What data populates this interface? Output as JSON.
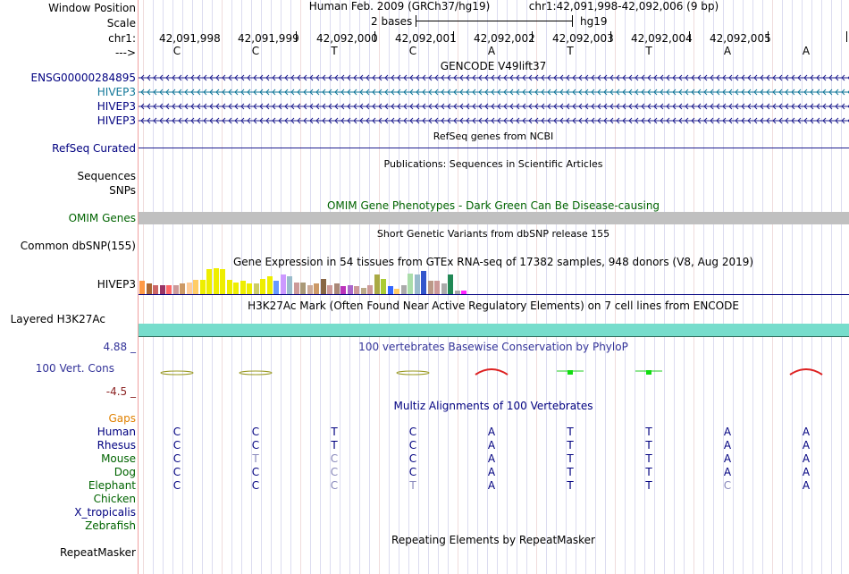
{
  "labels": {
    "window_position": "Window Position",
    "scale": "Scale",
    "chrom": "chr1:",
    "strand": "--->",
    "ensg": "ENSG00000284895",
    "hivep3_1": "HIVEP3",
    "hivep3_2": "HIVEP3",
    "hivep3_3": "HIVEP3",
    "refseq": "RefSeq Curated",
    "sequences": "Sequences",
    "snps": "SNPs",
    "omim": "OMIM Genes",
    "dbsnp": "Common dbSNP(155)",
    "gtex_gene": "HIVEP3",
    "h3k27": "Layered H3K27Ac",
    "phylop_max": "4.88 _",
    "vert_cons": "100 Vert. Cons",
    "phylop_min": "-4.5 _",
    "gaps": "Gaps",
    "species": [
      {
        "name": "Human",
        "color": "#000080"
      },
      {
        "name": "Rhesus",
        "color": "#000080"
      },
      {
        "name": "Mouse",
        "color": "#006400"
      },
      {
        "name": "Dog",
        "color": "#006400"
      },
      {
        "name": "Elephant",
        "color": "#006400"
      },
      {
        "name": "Chicken",
        "color": "#006400"
      },
      {
        "name": "X_tropicalis",
        "color": "#000080"
      },
      {
        "name": "Zebrafish",
        "color": "#006400"
      }
    ],
    "repeatmasker": "RepeatMasker"
  },
  "header": {
    "assembly": "Human Feb. 2009 (GRCh37/hg19)",
    "position": "chr1:42,091,998-42,092,006 (9 bp)",
    "scale_text": "2 bases",
    "scale_db": "hg19"
  },
  "ruler": [
    "42,091,998",
    "42,091,999",
    "42,092,000",
    "42,092,001",
    "42,092,002",
    "42,092,003",
    "42,092,004",
    "42,092,005"
  ],
  "bases": [
    "C",
    "C",
    "T",
    "C",
    "A",
    "T",
    "T",
    "A",
    "A"
  ],
  "titles": {
    "gencode": "GENCODE V49lift37",
    "refseq": "RefSeq genes from NCBI",
    "publications": "Publications: Sequences in Scientific Articles",
    "omim": "OMIM Gene Phenotypes - Dark Green Can Be Disease-causing",
    "dbsnp": "Short Genetic Variants from dbSNP release 155",
    "gtex": "Gene Expression in 54 tissues from GTEx RNA-seq of 17382 samples, 948 donors (V8, Aug 2019)",
    "h3k27": "H3K27Ac Mark (Often Found Near Active Regulatory Elements) on 7 cell lines from ENCODE",
    "phylop": "100 vertebrates Basewise Conservation by PhyloP",
    "multiz": "Multiz Alignments of 100 Vertebrates",
    "repeat": "Repeating Elements by RepeatMasker"
  },
  "alignment": {
    "Human": [
      "C",
      "C",
      "T",
      "C",
      "A",
      "T",
      "T",
      "A",
      "A"
    ],
    "Rhesus": [
      "C",
      "C",
      "T",
      "C",
      "A",
      "T",
      "T",
      "A",
      "A"
    ],
    "Mouse": [
      "C",
      "T",
      "C",
      "C",
      "A",
      "T",
      "T",
      "A",
      "A"
    ],
    "Dog": [
      "C",
      "C",
      "C",
      "C",
      "A",
      "T",
      "T",
      "A",
      "A"
    ],
    "Elephant": [
      "C",
      "C",
      "C",
      "T",
      "A",
      "T",
      "T",
      "C",
      "A"
    ]
  },
  "alignment_faded": {
    "Mouse": [
      false,
      true,
      true,
      false,
      false,
      false,
      false,
      false,
      false
    ],
    "Dog": [
      false,
      false,
      true,
      false,
      false,
      false,
      false,
      false,
      false
    ],
    "Elephant": [
      false,
      false,
      true,
      true,
      false,
      false,
      false,
      true,
      false
    ]
  },
  "gtex_colors": [
    "#ff9944",
    "#aa6633",
    "#cc6666",
    "#993366",
    "#ff6666",
    "#cc9999",
    "#cc9966",
    "#ffcc99",
    "#ffcc66",
    "#eeee00",
    "#eeee00",
    "#eeee00",
    "#eeee00",
    "#eeee00",
    "#eeee00",
    "#eeee00",
    "#eeee00",
    "#cccc66",
    "#eeee00",
    "#eeee00",
    "#6699ff",
    "#cc99ff",
    "#99bbcc",
    "#cc9999",
    "#aa9977",
    "#ccaa99",
    "#cc9966",
    "#886644",
    "#cc9999",
    "#aa8877",
    "#bb33bb",
    "#aa66cc",
    "#cc9999",
    "#bbaa88",
    "#cc9999",
    "#aaaa44",
    "#aacc33",
    "#3366ff",
    "#ffcc66",
    "#aaaaaa",
    "#aaddaa",
    "#99bbcc",
    "#3355cc",
    "#bb9988",
    "#cc9999",
    "#aaaaaa",
    "#228855",
    "#aaaaaa",
    "#ff22ff"
  ],
  "gtex_levels": [
    0.5,
    0.4,
    0.35,
    0.35,
    0.35,
    0.35,
    0.4,
    0.45,
    0.55,
    0.55,
    0.95,
    1.0,
    0.95,
    0.55,
    0.45,
    0.5,
    0.4,
    0.4,
    0.6,
    0.7,
    0.5,
    0.75,
    0.7,
    0.45,
    0.45,
    0.35,
    0.4,
    0.6,
    0.35,
    0.4,
    0.3,
    0.35,
    0.3,
    0.25,
    0.35,
    0.75,
    0.6,
    0.3,
    0.2,
    0.35,
    0.8,
    0.75,
    0.9,
    0.5,
    0.5,
    0.4,
    0.75,
    0.15,
    0.15
  ],
  "colors": {
    "navy": "#000080",
    "green": "#006400",
    "orange": "#e08000",
    "omim_gray": "#c0c0c0",
    "h3k27": "#77ddcc",
    "gencode_blue": "#1f1f8f",
    "hivep3_teal": "#117799",
    "phylop_pos": "#dd2222",
    "phylop_neg": "#999922"
  }
}
